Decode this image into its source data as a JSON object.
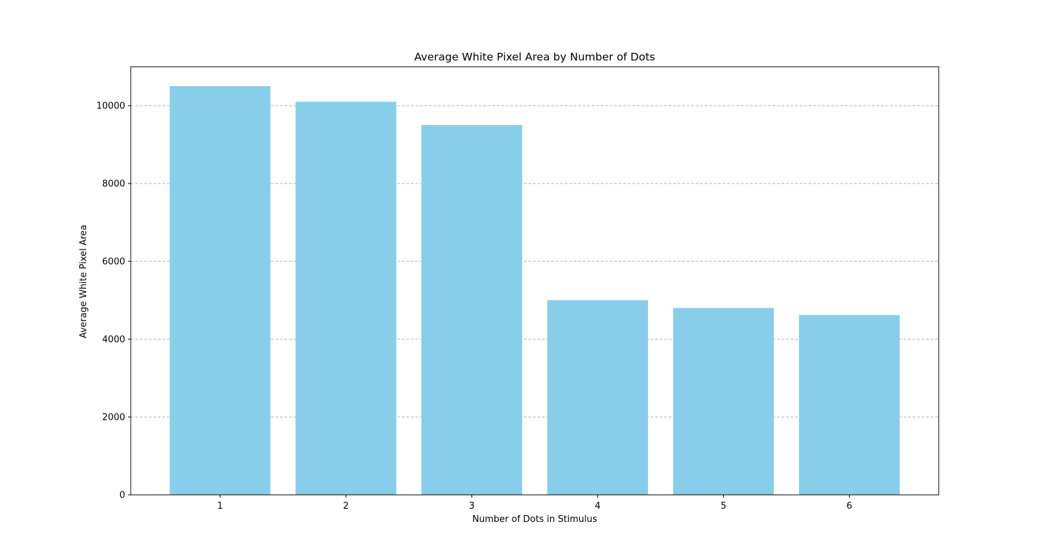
{
  "chart_data": {
    "type": "bar",
    "title": "Average White Pixel Area by Number of Dots",
    "xlabel": "Number of Dots in Stimulus",
    "ylabel": "Average White Pixel Area",
    "categories": [
      "1",
      "2",
      "3",
      "4",
      "5",
      "6"
    ],
    "values": [
      10500,
      10100,
      9500,
      5000,
      4800,
      4620
    ],
    "ylim": [
      0,
      11000
    ],
    "yticks": [
      0,
      2000,
      4000,
      6000,
      8000,
      10000
    ],
    "grid": "y-dashed",
    "bar_color": "#87CEEB"
  }
}
